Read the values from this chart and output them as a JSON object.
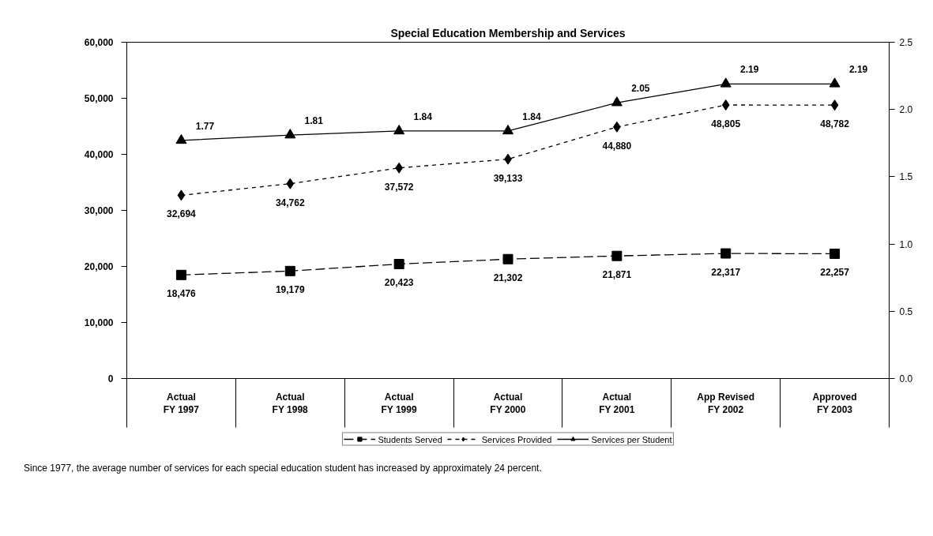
{
  "chart_data": {
    "type": "line",
    "title": "Special Education Membership and Services",
    "categories": [
      "Actual\nFY 1997",
      "Actual\nFY 1998",
      "Actual\nFY 1999",
      "Actual\nFY 2000",
      "Actual\nFY 2001",
      "App Revised\nFY 2002",
      "Approved\nFY 2003"
    ],
    "series": [
      {
        "name": "Students Served",
        "color": "#000000",
        "marker": "square",
        "line_style": "dashed",
        "values": [
          18476,
          19179,
          20423,
          21302,
          21871,
          22317,
          22257
        ],
        "value_labels": [
          "18,476",
          "19,179",
          "20,423",
          "21,302",
          "21,871",
          "22,317",
          "22,257"
        ]
      },
      {
        "name": "Services Provided",
        "color": "#000000",
        "marker": "diamond",
        "line_style": "dotted",
        "values": [
          32694,
          34762,
          37572,
          39133,
          44880,
          48805,
          48782
        ],
        "value_labels": [
          "32,694",
          "34,762",
          "37,572",
          "39,133",
          "44,880",
          "48,805",
          "48,782"
        ]
      },
      {
        "name": "Services per Student",
        "color": "#000000",
        "marker": "triangle",
        "line_style": "solid",
        "axis": "y2",
        "values": [
          1.77,
          1.81,
          1.84,
          1.84,
          2.05,
          2.19,
          2.19
        ],
        "value_labels": [
          "1.77",
          "1.81",
          "1.84",
          "1.84",
          "2.05",
          "2.19",
          "2.19"
        ]
      }
    ],
    "ylim": [
      0,
      60000
    ],
    "yticks": [
      0,
      {
        "value": 10000,
        "label": "10,000"
      },
      {
        "value": 20000,
        "label": "20,000"
      },
      {
        "value": 30000,
        "label": "30,000"
      },
      {
        "value": 40000,
        "label": "40,000"
      },
      {
        "value": 50000,
        "label": "50,000"
      },
      {
        "value": 60000,
        "label": "60,000"
      }
    ],
    "y2lim": [
      0,
      2.5
    ],
    "y2ticks": [
      {
        "value": 0,
        "label": "0.0"
      },
      0.5,
      {
        "value": 1,
        "label": "1.0"
      },
      1.5,
      {
        "value": 2,
        "label": "2.0"
      },
      2.5
    ],
    "grid": false,
    "legend": "bottom",
    "annotations": [
      "Since 1977, the average number of services for each special education student has increased by approximately 24 percent."
    ]
  }
}
